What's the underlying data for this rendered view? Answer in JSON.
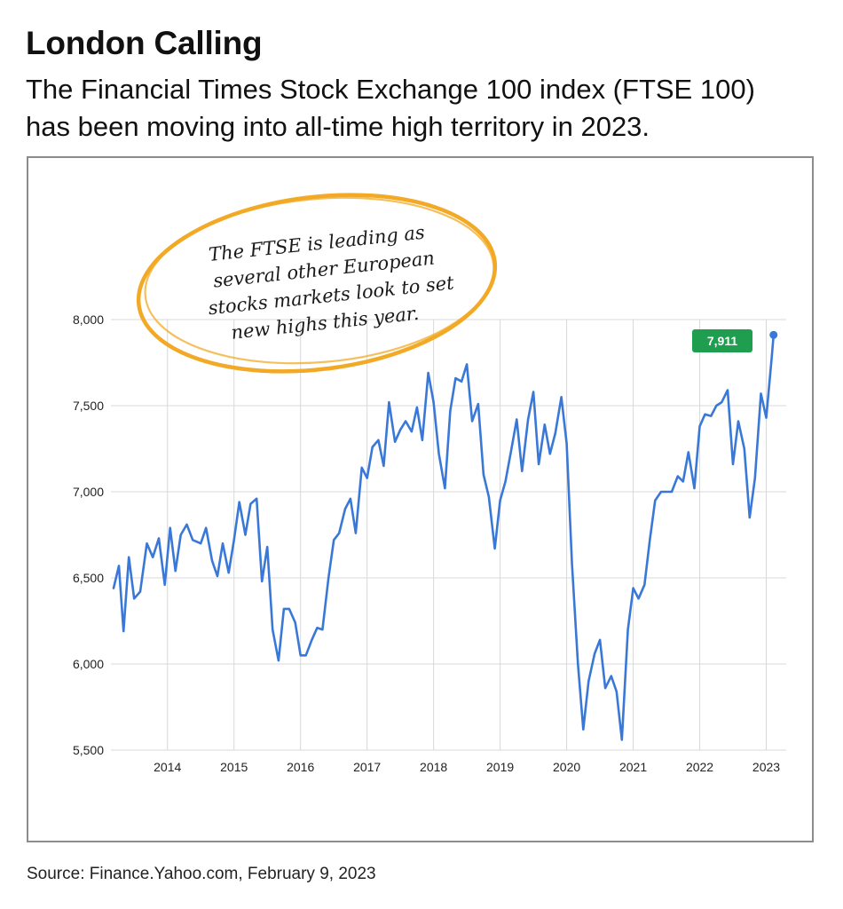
{
  "header": {
    "title": "London Calling",
    "subtitle_line1": "The Financial Times Stock Exchange 100 index (FTSE 100)",
    "subtitle_line2": "has been moving into all-time high territory in 2023."
  },
  "annotation": {
    "lines": [
      "The FTSE is leading as",
      "several other European",
      "stocks markets look to set",
      "new highs this year."
    ]
  },
  "source": "Source: Finance.Yahoo.com, February 9, 2023",
  "colors": {
    "line": "#3a78d8",
    "grid": "#d8d8d8",
    "badge": "#1e9e4e",
    "annotation_ring": "#f2a926"
  },
  "chart_data": {
    "type": "line",
    "title": "",
    "xlabel": "",
    "ylabel": "",
    "ylim": [
      5500,
      8000
    ],
    "xlim": [
      2013.15,
      2023.3
    ],
    "grid": true,
    "y_ticks": [
      8000,
      7500,
      7000,
      6500,
      6000,
      5500
    ],
    "y_tick_labels": [
      "8,000",
      "7,500",
      "7,000",
      "6,500",
      "6,000",
      "5,500"
    ],
    "x_ticks": [
      2014,
      2015,
      2016,
      2017,
      2018,
      2019,
      2020,
      2021,
      2022,
      2023
    ],
    "x_tick_labels": [
      "2014",
      "2015",
      "2016",
      "2017",
      "2018",
      "2019",
      "2020",
      "2021",
      "2022",
      "2023"
    ],
    "last_value_label": "7,911",
    "series": [
      {
        "name": "",
        "points": [
          [
            2013.19,
            6440
          ],
          [
            2013.27,
            6570
          ],
          [
            2013.34,
            6190
          ],
          [
            2013.42,
            6620
          ],
          [
            2013.5,
            6380
          ],
          [
            2013.59,
            6420
          ],
          [
            2013.69,
            6700
          ],
          [
            2013.78,
            6620
          ],
          [
            2013.87,
            6730
          ],
          [
            2013.96,
            6460
          ],
          [
            2014.04,
            6790
          ],
          [
            2014.12,
            6540
          ],
          [
            2014.2,
            6750
          ],
          [
            2014.29,
            6810
          ],
          [
            2014.38,
            6720
          ],
          [
            2014.5,
            6700
          ],
          [
            2014.58,
            6790
          ],
          [
            2014.67,
            6600
          ],
          [
            2014.75,
            6510
          ],
          [
            2014.83,
            6700
          ],
          [
            2014.92,
            6530
          ],
          [
            2015.0,
            6720
          ],
          [
            2015.08,
            6940
          ],
          [
            2015.17,
            6750
          ],
          [
            2015.25,
            6930
          ],
          [
            2015.34,
            6960
          ],
          [
            2015.42,
            6480
          ],
          [
            2015.5,
            6680
          ],
          [
            2015.58,
            6200
          ],
          [
            2015.67,
            6020
          ],
          [
            2015.75,
            6320
          ],
          [
            2015.83,
            6320
          ],
          [
            2015.92,
            6240
          ],
          [
            2016.0,
            6050
          ],
          [
            2016.08,
            6050
          ],
          [
            2016.17,
            6140
          ],
          [
            2016.25,
            6210
          ],
          [
            2016.33,
            6200
          ],
          [
            2016.42,
            6500
          ],
          [
            2016.5,
            6720
          ],
          [
            2016.58,
            6760
          ],
          [
            2016.67,
            6900
          ],
          [
            2016.75,
            6960
          ],
          [
            2016.83,
            6760
          ],
          [
            2016.92,
            7140
          ],
          [
            2017.0,
            7080
          ],
          [
            2017.08,
            7260
          ],
          [
            2017.17,
            7300
          ],
          [
            2017.25,
            7150
          ],
          [
            2017.33,
            7520
          ],
          [
            2017.42,
            7290
          ],
          [
            2017.5,
            7360
          ],
          [
            2017.58,
            7410
          ],
          [
            2017.67,
            7350
          ],
          [
            2017.75,
            7490
          ],
          [
            2017.83,
            7300
          ],
          [
            2017.92,
            7690
          ],
          [
            2018.0,
            7520
          ],
          [
            2018.08,
            7220
          ],
          [
            2018.17,
            7020
          ],
          [
            2018.25,
            7470
          ],
          [
            2018.33,
            7660
          ],
          [
            2018.42,
            7640
          ],
          [
            2018.5,
            7740
          ],
          [
            2018.58,
            7410
          ],
          [
            2018.67,
            7510
          ],
          [
            2018.75,
            7100
          ],
          [
            2018.83,
            6970
          ],
          [
            2018.92,
            6670
          ],
          [
            2019.0,
            6950
          ],
          [
            2019.08,
            7060
          ],
          [
            2019.17,
            7250
          ],
          [
            2019.25,
            7420
          ],
          [
            2019.33,
            7120
          ],
          [
            2019.42,
            7420
          ],
          [
            2019.5,
            7580
          ],
          [
            2019.58,
            7160
          ],
          [
            2019.67,
            7390
          ],
          [
            2019.75,
            7220
          ],
          [
            2019.83,
            7340
          ],
          [
            2019.92,
            7550
          ],
          [
            2020.0,
            7280
          ],
          [
            2020.08,
            6580
          ],
          [
            2020.17,
            6000
          ],
          [
            2020.25,
            5620
          ],
          [
            2020.33,
            5900
          ],
          [
            2020.42,
            6060
          ],
          [
            2020.5,
            6140
          ],
          [
            2020.58,
            5860
          ],
          [
            2020.67,
            5930
          ],
          [
            2020.75,
            5840
          ],
          [
            2020.83,
            5560
          ],
          [
            2020.92,
            6200
          ],
          [
            2021.0,
            6440
          ],
          [
            2021.08,
            6380
          ],
          [
            2021.17,
            6460
          ],
          [
            2021.25,
            6720
          ],
          [
            2021.33,
            6950
          ],
          [
            2021.42,
            7000
          ],
          [
            2021.5,
            7000
          ],
          [
            2021.58,
            7000
          ],
          [
            2021.67,
            7090
          ],
          [
            2021.75,
            7060
          ],
          [
            2021.83,
            7230
          ],
          [
            2021.92,
            7020
          ],
          [
            2022.0,
            7380
          ],
          [
            2022.08,
            7450
          ],
          [
            2022.17,
            7440
          ],
          [
            2022.25,
            7500
          ],
          [
            2022.33,
            7520
          ],
          [
            2022.42,
            7590
          ],
          [
            2022.5,
            7160
          ],
          [
            2022.58,
            7410
          ],
          [
            2022.67,
            7250
          ],
          [
            2022.75,
            6850
          ],
          [
            2022.83,
            7080
          ],
          [
            2022.92,
            7570
          ],
          [
            2023.0,
            7430
          ],
          [
            2023.08,
            7770
          ],
          [
            2023.11,
            7911
          ]
        ]
      }
    ]
  }
}
